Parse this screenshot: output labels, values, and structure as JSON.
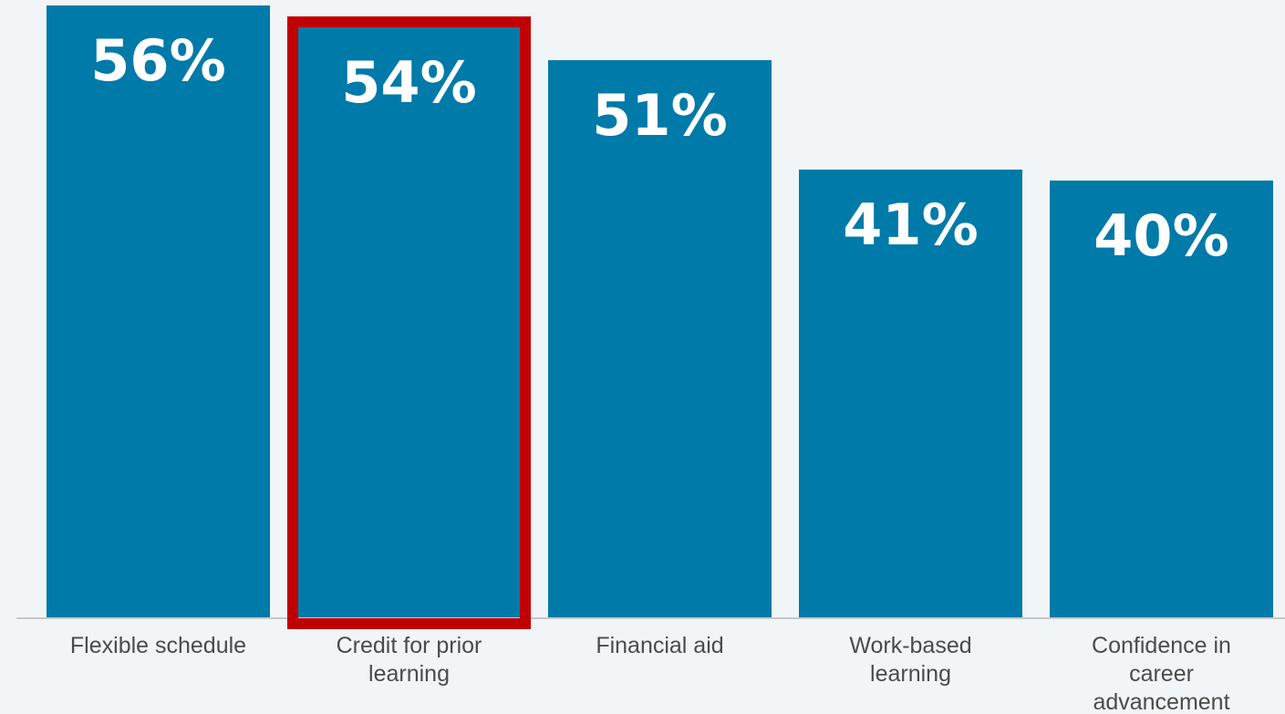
{
  "chart_data": {
    "type": "bar",
    "categories": [
      "Flexible schedule",
      "Credit for prior learning",
      "Financial aid",
      "Work-based learning",
      "Confidence in career advancement"
    ],
    "category_lines": [
      [
        "Flexible schedule"
      ],
      [
        "Credit for prior",
        "learning"
      ],
      [
        "Financial aid"
      ],
      [
        "Work-based",
        "learning"
      ],
      [
        "Confidence in",
        "career",
        "advancement"
      ]
    ],
    "values": [
      56,
      54,
      51,
      41,
      40
    ],
    "value_labels": [
      "56%",
      "54%",
      "51%",
      "41%",
      "40%"
    ],
    "unit": "%",
    "title": "",
    "xlabel": "",
    "ylabel": "",
    "ylim": [
      0,
      56
    ],
    "grid": false,
    "highlighted_index": 1,
    "colors": {
      "bar": "#007aa8",
      "highlight_outline": "#c00000",
      "background": "#f2f5f7",
      "baseline": "#c8c8c8",
      "value_text": "#ffffff",
      "label_text": "#4b4b4b"
    }
  }
}
